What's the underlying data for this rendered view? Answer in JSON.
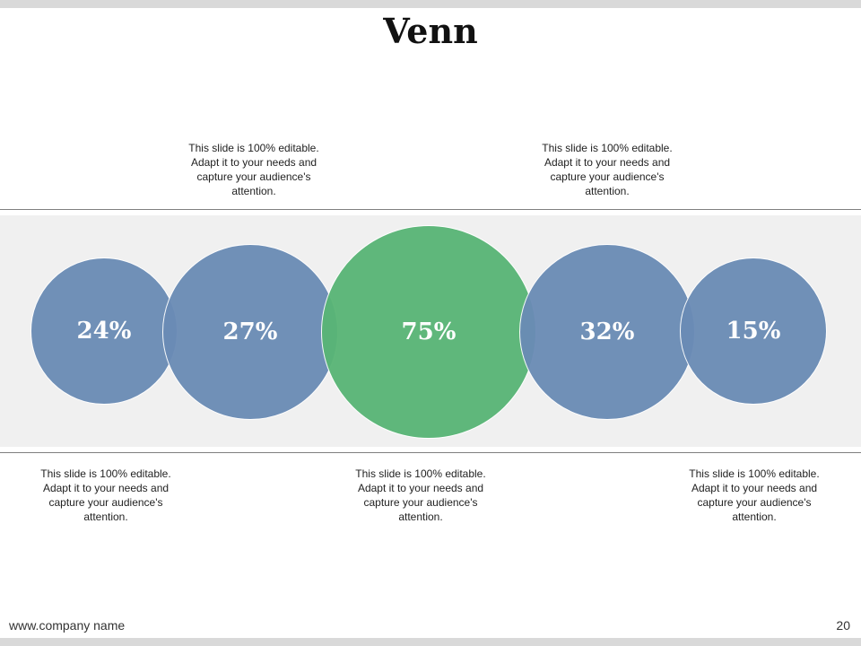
{
  "slide": {
    "title": "Venn",
    "page_number": "20",
    "footer_url": "www.company name"
  },
  "colors": {
    "blue": "#6a8bb5",
    "green": "#58b575",
    "band": "#f0f0f0",
    "rule": "#7f7f7f"
  },
  "circles": [
    {
      "value": "24%",
      "color": "#6a8bb5"
    },
    {
      "value": "27%",
      "color": "#6a8bb5"
    },
    {
      "value": "75%",
      "color": "#58b575"
    },
    {
      "value": "32%",
      "color": "#6a8bb5"
    },
    {
      "value": "15%",
      "color": "#6a8bb5"
    }
  ],
  "captions": {
    "top_left": "This slide is 100% editable. Adapt it to your needs and capture your audience's attention.",
    "top_right": "This slide is 100% editable. Adapt it to your needs and capture your audience's attention.",
    "bottom_left": "This slide is 100% editable. Adapt it to your needs and capture your audience's attention.",
    "bottom_center": "This slide is 100% editable. Adapt it to your needs and capture your audience's attention.",
    "bottom_right": "This slide is 100% editable. Adapt it to your needs and capture your audience's attention."
  }
}
